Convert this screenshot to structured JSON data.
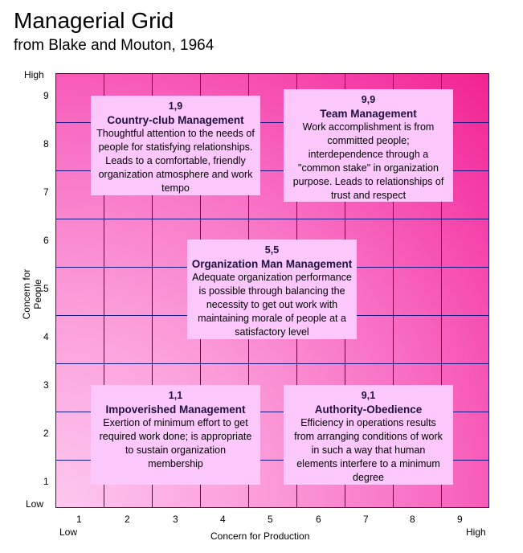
{
  "title": "Managerial Grid",
  "subtitle": "from Blake and Mouton, 1964",
  "y_axis": {
    "label": "Concern for People",
    "high": "High",
    "low": "Low",
    "ticks": [
      "9",
      "8",
      "7",
      "6",
      "5",
      "4",
      "3",
      "2",
      "1"
    ]
  },
  "x_axis": {
    "label": "Concern for Production",
    "high": "High",
    "low": "Low",
    "ticks": [
      "1",
      "2",
      "3",
      "4",
      "5",
      "6",
      "7",
      "8",
      "9"
    ]
  },
  "boxes": [
    {
      "coord": "1,9",
      "name": "Country-club Management",
      "text": "Thoughtful attention to the needs of people for statisfying relationships. Leads to a comfortable, friendly organization atmosphere and work tempo"
    },
    {
      "coord": "9,9",
      "name": "Team Management",
      "text": "Work accomplishment is from committed people; interdependence through a \"common stake\" in organization purpose. Leads to relationships of trust and respect"
    },
    {
      "coord": "5,5",
      "name": "Organization Man Management",
      "text": "Adequate organization performance is possible through balancing the necessity to get out work with maintaining morale of people at a satisfactory level"
    },
    {
      "coord": "1,1",
      "name": "Impoverished Management",
      "text": "Exertion of minimum effort to get required work done; is appropriate to sustain organization membership"
    },
    {
      "coord": "9,1",
      "name": "Authority-Obedience",
      "text": "Efficiency in operations results from arranging conditions of work in such a way that human elements interfere to a minimum degree"
    }
  ]
}
